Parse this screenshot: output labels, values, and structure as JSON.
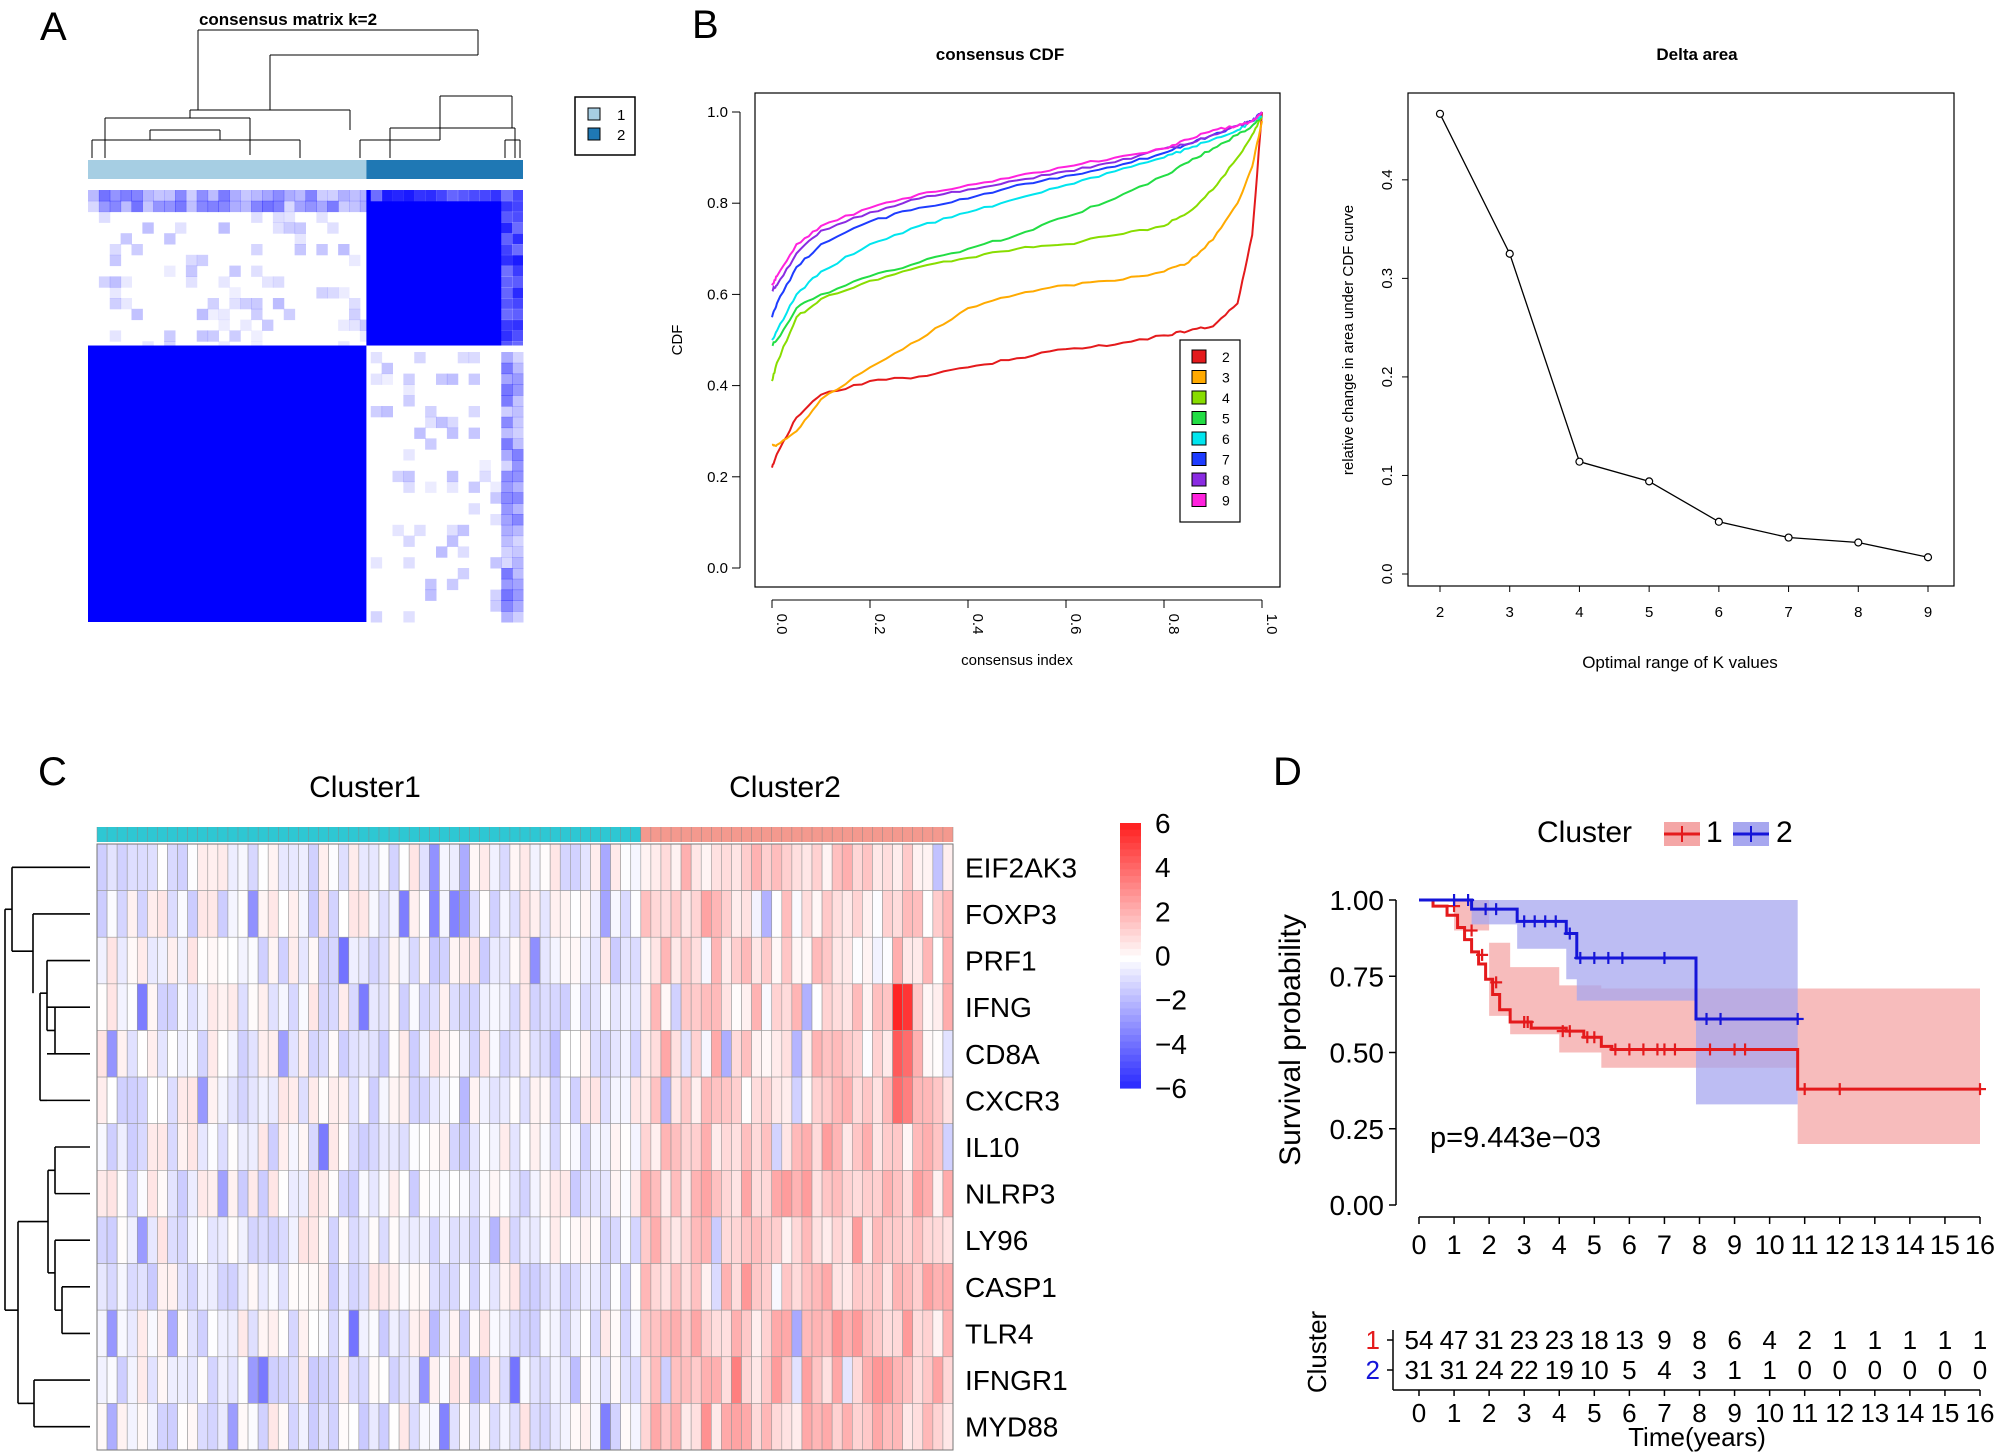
{
  "panel_labels": {
    "a": "A",
    "b": "B",
    "c": "C",
    "d": "D"
  },
  "colors": {
    "cluster1_light": "#a6cee3",
    "cluster2_dark": "#1f78b4",
    "heat_blue": "#0000ff",
    "cyan_bar": "#2ec7d3",
    "salmon_bar": "#f4998e",
    "km1": "#e41a1c",
    "km2": "#1515d8",
    "band1": "#f4a6a6",
    "band2": "#a7a7ef"
  },
  "chart_data": [
    {
      "type": "heatmap",
      "title": "consensus matrix k=2",
      "legend": {
        "items": [
          {
            "label": "1",
            "color": "#a6cee3"
          },
          {
            "label": "2",
            "color": "#1f78b4"
          }
        ]
      },
      "clusters": [
        {
          "name": "1",
          "fraction": 0.64
        },
        {
          "name": "2",
          "fraction": 0.36
        }
      ]
    },
    {
      "type": "line",
      "title": "consensus CDF",
      "xlabel": "consensus index",
      "ylabel": "CDF",
      "xlim": [
        0,
        1
      ],
      "ylim": [
        0,
        1
      ],
      "xticks": [
        "0.0",
        "0.2",
        "0.4",
        "0.6",
        "0.8",
        "1.0"
      ],
      "yticks": [
        "0.0",
        "0.2",
        "0.4",
        "0.6",
        "0.8",
        "1.0"
      ],
      "x": [
        0,
        0.01,
        0.05,
        0.1,
        0.2,
        0.3,
        0.4,
        0.5,
        0.6,
        0.7,
        0.8,
        0.85,
        0.9,
        0.95,
        0.98,
        1.0
      ],
      "series": [
        {
          "name": "2",
          "color": "#e41a1c",
          "values": [
            0.22,
            0.25,
            0.33,
            0.38,
            0.41,
            0.42,
            0.44,
            0.46,
            0.48,
            0.49,
            0.51,
            0.52,
            0.53,
            0.58,
            0.73,
            1.0
          ]
        },
        {
          "name": "3",
          "color": "#ffaa00",
          "values": [
            0.27,
            0.27,
            0.3,
            0.37,
            0.44,
            0.5,
            0.57,
            0.6,
            0.62,
            0.63,
            0.65,
            0.67,
            0.72,
            0.8,
            0.88,
            0.98
          ]
        },
        {
          "name": "4",
          "color": "#88dd00",
          "values": [
            0.41,
            0.45,
            0.55,
            0.59,
            0.63,
            0.66,
            0.68,
            0.7,
            0.71,
            0.73,
            0.75,
            0.78,
            0.83,
            0.9,
            0.95,
            0.99
          ]
        },
        {
          "name": "5",
          "color": "#22dd44",
          "values": [
            0.49,
            0.5,
            0.57,
            0.6,
            0.64,
            0.67,
            0.7,
            0.73,
            0.77,
            0.81,
            0.86,
            0.89,
            0.92,
            0.95,
            0.97,
            0.99
          ]
        },
        {
          "name": "6",
          "color": "#00e5ee",
          "values": [
            0.5,
            0.52,
            0.6,
            0.65,
            0.71,
            0.75,
            0.78,
            0.81,
            0.84,
            0.87,
            0.9,
            0.92,
            0.94,
            0.96,
            0.98,
            0.99
          ]
        },
        {
          "name": "7",
          "color": "#1e3cff",
          "values": [
            0.55,
            0.58,
            0.66,
            0.71,
            0.76,
            0.79,
            0.81,
            0.84,
            0.86,
            0.88,
            0.91,
            0.93,
            0.95,
            0.97,
            0.98,
            1.0
          ]
        },
        {
          "name": "8",
          "color": "#8a2be2",
          "values": [
            0.61,
            0.62,
            0.69,
            0.74,
            0.78,
            0.81,
            0.83,
            0.85,
            0.87,
            0.89,
            0.92,
            0.93,
            0.95,
            0.97,
            0.98,
            1.0
          ]
        },
        {
          "name": "9",
          "color": "#ff22dd",
          "values": [
            0.62,
            0.64,
            0.71,
            0.75,
            0.79,
            0.82,
            0.84,
            0.86,
            0.88,
            0.9,
            0.92,
            0.94,
            0.96,
            0.97,
            0.98,
            1.0
          ]
        }
      ]
    },
    {
      "type": "line",
      "title": "Delta area",
      "xlabel": "Optimal range of K values",
      "ylabel": "relative change in area under CDF curve",
      "xlim": [
        2,
        9
      ],
      "ylim": [
        0,
        0.48
      ],
      "x": [
        2,
        3,
        4,
        5,
        6,
        7,
        8,
        9
      ],
      "xticks": [
        "2",
        "3",
        "4",
        "5",
        "6",
        "7",
        "8",
        "9"
      ],
      "yticks": [
        "0.0",
        "0.1",
        "0.2",
        "0.3",
        "0.4"
      ],
      "values": [
        0.467,
        0.325,
        0.114,
        0.094,
        0.053,
        0.037,
        0.032,
        0.017
      ]
    },
    {
      "type": "heatmap",
      "column_groups": [
        {
          "name": "Cluster1",
          "columns": 54
        },
        {
          "name": "Cluster2",
          "columns": 31
        }
      ],
      "rows": [
        "EIF2AK3",
        "FOXP3",
        "PRF1",
        "IFNG",
        "CD8A",
        "CXCR3",
        "IL10",
        "NLRP3",
        "LY96",
        "CASP1",
        "TLR4",
        "IFNGR1",
        "MYD88"
      ],
      "color_scale": {
        "min": -6,
        "max": 6,
        "ticks": [
          "6",
          "4",
          "2",
          "0",
          "−2",
          "−4",
          "−6"
        ]
      }
    },
    {
      "type": "line",
      "title": "Cluster",
      "legend": [
        "1",
        "2"
      ],
      "xlabel": "Time(years)",
      "ylabel": "Survival probability",
      "xlim": [
        0,
        16
      ],
      "ylim": [
        0,
        1
      ],
      "xticks": [
        "0",
        "1",
        "2",
        "3",
        "4",
        "5",
        "6",
        "7",
        "8",
        "9",
        "10",
        "11",
        "12",
        "13",
        "14",
        "15",
        "16"
      ],
      "yticks": [
        "0.00",
        "0.25",
        "0.50",
        "0.75",
        "1.00"
      ],
      "pvalue": "p=9.443e−03",
      "series": [
        {
          "name": "1",
          "color": "#e41a1c",
          "steps": [
            [
              0,
              1.0
            ],
            [
              0.4,
              0.98
            ],
            [
              0.8,
              0.95
            ],
            [
              1.1,
              0.91
            ],
            [
              1.3,
              0.87
            ],
            [
              1.5,
              0.83
            ],
            [
              1.7,
              0.79
            ],
            [
              1.9,
              0.74
            ],
            [
              2.1,
              0.69
            ],
            [
              2.3,
              0.64
            ],
            [
              2.6,
              0.6
            ],
            [
              3.2,
              0.58
            ],
            [
              4.2,
              0.57
            ],
            [
              4.7,
              0.55
            ],
            [
              5.2,
              0.52
            ],
            [
              5.5,
              0.51
            ],
            [
              9.6,
              0.51
            ],
            [
              10.8,
              0.38
            ],
            [
              16,
              0.38
            ]
          ],
          "censor": [
            [
              1.0,
              0.98
            ],
            [
              1.5,
              0.9
            ],
            [
              1.8,
              0.82
            ],
            [
              2.2,
              0.73
            ],
            [
              3.0,
              0.6
            ],
            [
              3.1,
              0.6
            ],
            [
              4.1,
              0.57
            ],
            [
              4.3,
              0.57
            ],
            [
              4.8,
              0.55
            ],
            [
              5.0,
              0.55
            ],
            [
              5.6,
              0.51
            ],
            [
              6.0,
              0.51
            ],
            [
              6.4,
              0.51
            ],
            [
              6.8,
              0.51
            ],
            [
              7.0,
              0.51
            ],
            [
              7.3,
              0.51
            ],
            [
              8.3,
              0.51
            ],
            [
              9.0,
              0.51
            ],
            [
              9.3,
              0.51
            ],
            [
              11.0,
              0.38
            ],
            [
              12.0,
              0.38
            ],
            [
              16.0,
              0.38
            ]
          ],
          "band": {
            "upper": [
              [
                0,
                1.0
              ],
              [
                1,
                1.0
              ],
              [
                2,
                0.86
              ],
              [
                2.6,
                0.78
              ],
              [
                4,
                0.72
              ],
              [
                5.2,
                0.71
              ],
              [
                10.8,
                0.71
              ],
              [
                16,
                0.71
              ]
            ],
            "lower": [
              [
                0,
                1.0
              ],
              [
                1,
                0.9
              ],
              [
                2,
                0.62
              ],
              [
                2.6,
                0.56
              ],
              [
                4,
                0.5
              ],
              [
                5.2,
                0.45
              ],
              [
                10.8,
                0.2
              ],
              [
                16,
                0.2
              ]
            ]
          }
        },
        {
          "name": "2",
          "color": "#1515d8",
          "steps": [
            [
              0,
              1.0
            ],
            [
              1.5,
              0.97
            ],
            [
              2.8,
              0.93
            ],
            [
              4.2,
              0.89
            ],
            [
              4.5,
              0.81
            ],
            [
              7.9,
              0.61
            ],
            [
              10.8,
              0.61
            ]
          ],
          "censor": [
            [
              1.0,
              1.0
            ],
            [
              1.4,
              1.0
            ],
            [
              1.9,
              0.97
            ],
            [
              2.2,
              0.97
            ],
            [
              3.0,
              0.93
            ],
            [
              3.3,
              0.93
            ],
            [
              3.6,
              0.93
            ],
            [
              3.9,
              0.93
            ],
            [
              4.3,
              0.89
            ],
            [
              4.6,
              0.81
            ],
            [
              5.0,
              0.81
            ],
            [
              5.4,
              0.81
            ],
            [
              5.8,
              0.81
            ],
            [
              7.0,
              0.81
            ],
            [
              8.2,
              0.61
            ],
            [
              8.6,
              0.61
            ],
            [
              10.8,
              0.61
            ]
          ],
          "band": {
            "upper": [
              [
                0,
                1.0
              ],
              [
                10.8,
                1.0
              ]
            ],
            "lower": [
              [
                0,
                1.0
              ],
              [
                1.5,
                0.92
              ],
              [
                2.8,
                0.84
              ],
              [
                4.2,
                0.74
              ],
              [
                4.5,
                0.67
              ],
              [
                7.9,
                0.33
              ],
              [
                10.8,
                0.33
              ]
            ]
          }
        }
      ],
      "risk_table": {
        "title": "Cluster",
        "group_labels": [
          "1",
          "2"
        ],
        "times": [
          "0",
          "1",
          "2",
          "3",
          "4",
          "5",
          "6",
          "7",
          "8",
          "9",
          "10",
          "11",
          "12",
          "13",
          "14",
          "15",
          "16"
        ],
        "counts": [
          [
            "54",
            "47",
            "31",
            "23",
            "23",
            "18",
            "13",
            "9",
            "8",
            "6",
            "4",
            "2",
            "1",
            "1",
            "1",
            "1",
            "1"
          ],
          [
            "31",
            "31",
            "24",
            "22",
            "19",
            "10",
            "5",
            "4",
            "3",
            "1",
            "1",
            "0",
            "0",
            "0",
            "0",
            "0",
            "0"
          ]
        ]
      }
    }
  ]
}
